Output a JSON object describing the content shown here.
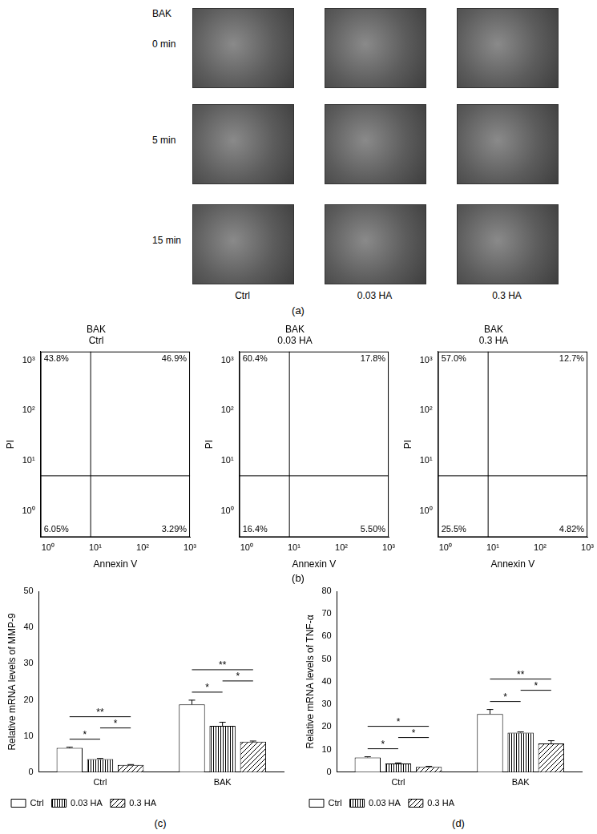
{
  "panel_labels": [
    "(a)",
    "(b)",
    "(c)",
    "(d)"
  ],
  "panel_a": {
    "treatment": "BAK",
    "rows": [
      "0 min",
      "5 min",
      "15 min"
    ],
    "columns": [
      "Ctrl",
      "0.03 HA",
      "0.3 HA"
    ]
  },
  "chart_data": [
    {
      "type": "scatter",
      "title": [
        "BAK",
        "Ctrl"
      ],
      "x_label": "Annexin V",
      "y_label": "PI",
      "log": true,
      "grid": false,
      "xlim": [
        0.7,
        1000
      ],
      "ylim": [
        0.3,
        1500
      ],
      "xticks": [
        {
          "value": 1,
          "label": "10⁰"
        },
        {
          "value": 10,
          "label": "10¹"
        },
        {
          "value": 100,
          "label": "10²"
        },
        {
          "value": 1000,
          "label": "10³"
        }
      ],
      "yticks": [
        {
          "value": 1,
          "label": "10⁰"
        },
        {
          "value": 10,
          "label": "10¹"
        },
        {
          "value": 100,
          "label": "10²"
        },
        {
          "value": 1000,
          "label": "10³"
        }
      ],
      "gates": {
        "x": 8,
        "y": 5
      },
      "quadrants": {
        "values": [
          43.8,
          46.9,
          6.05,
          3.29
        ],
        "value_labels": [
          "43.8%",
          "46.9%",
          "6.05%",
          "3.29%"
        ]
      }
    },
    {
      "type": "scatter",
      "title": [
        "BAK",
        "0.03 HA"
      ],
      "x_label": "Annexin V",
      "y_label": "PI",
      "log": true,
      "grid": false,
      "xlim": [
        0.7,
        1000
      ],
      "ylim": [
        0.3,
        1500
      ],
      "xticks": [
        {
          "value": 1,
          "label": "10⁰"
        },
        {
          "value": 10,
          "label": "10¹"
        },
        {
          "value": 100,
          "label": "10²"
        },
        {
          "value": 1000,
          "label": "10³"
        }
      ],
      "yticks": [
        {
          "value": 1,
          "label": "10⁰"
        },
        {
          "value": 10,
          "label": "10¹"
        },
        {
          "value": 100,
          "label": "10²"
        },
        {
          "value": 1000,
          "label": "10³"
        }
      ],
      "gates": {
        "x": 8,
        "y": 5
      },
      "quadrants": {
        "values": [
          60.4,
          17.8,
          16.4,
          5.5
        ],
        "value_labels": [
          "60.4%",
          "17.8%",
          "16.4%",
          "5.50%"
        ]
      }
    },
    {
      "type": "scatter",
      "title": [
        "BAK",
        "0.3 HA"
      ],
      "x_label": "Annexin V",
      "y_label": "PI",
      "log": true,
      "grid": false,
      "xlim": [
        0.7,
        1000
      ],
      "ylim": [
        0.3,
        1500
      ],
      "xticks": [
        {
          "value": 1,
          "label": "10⁰"
        },
        {
          "value": 10,
          "label": "10¹"
        },
        {
          "value": 100,
          "label": "10²"
        },
        {
          "value": 1000,
          "label": "10³"
        }
      ],
      "yticks": [
        {
          "value": 1,
          "label": "10⁰"
        },
        {
          "value": 10,
          "label": "10¹"
        },
        {
          "value": 100,
          "label": "10²"
        },
        {
          "value": 1000,
          "label": "10³"
        }
      ],
      "gates": {
        "x": 8,
        "y": 5
      },
      "quadrants": {
        "values": [
          57.0,
          12.7,
          25.5,
          4.82
        ],
        "value_labels": [
          "57.0%",
          "12.7%",
          "25.5%",
          "4.82%"
        ]
      }
    },
    {
      "type": "bar",
      "y_label": "Relative mRNA levels of MMP-9",
      "categories": [
        "Ctrl",
        "BAK"
      ],
      "series": [
        {
          "name": "Ctrl",
          "color": "#ffffff",
          "values": [
            6.7,
            18.7
          ],
          "errors": [
            0.2,
            1.2
          ]
        },
        {
          "name": "0.03 HA",
          "color": "#ffffff",
          "values": [
            3.6,
            12.8
          ],
          "errors": [
            0.2,
            1.0
          ]
        },
        {
          "name": "0.3 HA",
          "color": "#ffffff",
          "values": [
            2.0,
            8.4
          ],
          "errors": [
            0.1,
            0.2
          ]
        }
      ],
      "ylim": [
        0,
        50
      ],
      "yticks": [
        0,
        10,
        20,
        30,
        40,
        50
      ],
      "grid": false,
      "legend": "bottom",
      "significance": [
        {
          "category": 0,
          "from": 0,
          "to": 1,
          "label": "*"
        },
        {
          "category": 0,
          "from": 0,
          "to": 2,
          "label": "**"
        },
        {
          "category": 0,
          "from": 1,
          "to": 2,
          "label": "*"
        },
        {
          "category": 1,
          "from": 0,
          "to": 1,
          "label": "*"
        },
        {
          "category": 1,
          "from": 0,
          "to": 2,
          "label": "**"
        },
        {
          "category": 1,
          "from": 1,
          "to": 2,
          "label": "*"
        }
      ]
    },
    {
      "type": "bar",
      "y_label": "Relative mRNA levels of TNF-α",
      "categories": [
        "Ctrl",
        "BAK"
      ],
      "series": [
        {
          "name": "Ctrl",
          "color": "#ffffff",
          "values": [
            6.5,
            25.7
          ],
          "errors": [
            0.3,
            2.0
          ]
        },
        {
          "name": "0.03 HA",
          "color": "#ffffff",
          "values": [
            3.8,
            17.5
          ],
          "errors": [
            0.3,
            0.3
          ]
        },
        {
          "name": "0.3 HA",
          "color": "#ffffff",
          "values": [
            2.3,
            12.7
          ],
          "errors": [
            0.3,
            1.2
          ]
        }
      ],
      "ylim": [
        0,
        80
      ],
      "yticks": [
        0,
        10,
        20,
        30,
        40,
        50,
        60,
        70,
        80
      ],
      "grid": false,
      "legend": "bottom",
      "significance": [
        {
          "category": 0,
          "from": 0,
          "to": 1,
          "label": "*"
        },
        {
          "category": 0,
          "from": 0,
          "to": 2,
          "label": "*"
        },
        {
          "category": 0,
          "from": 1,
          "to": 2,
          "label": "*"
        },
        {
          "category": 1,
          "from": 0,
          "to": 1,
          "label": "*"
        },
        {
          "category": 1,
          "from": 0,
          "to": 2,
          "label": "**"
        },
        {
          "category": 1,
          "from": 1,
          "to": 2,
          "label": "*"
        }
      ]
    }
  ]
}
